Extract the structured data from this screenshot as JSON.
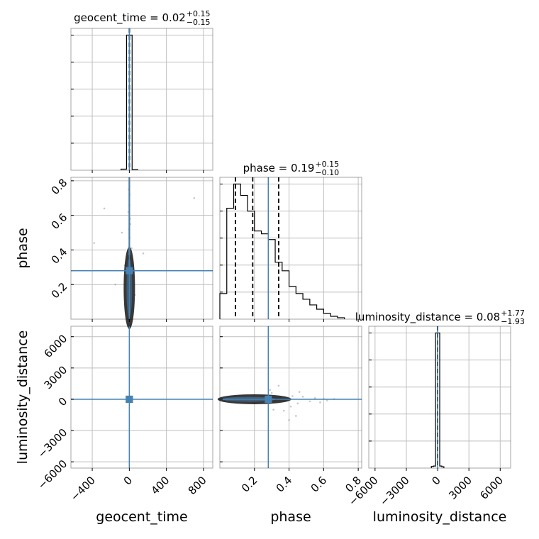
{
  "chart_data": {
    "type": "corner",
    "parameters": [
      "geocent_time",
      "phase",
      "luminosity_distance"
    ],
    "axis_labels": [
      "geocent_time",
      "phase",
      "luminosity_distance"
    ],
    "truth_values": {
      "geocent_time": 0,
      "phase": 0.28,
      "luminosity_distance": 0
    },
    "truth_color": "#4682b4",
    "contour_color": "#000000",
    "grid": true,
    "ranges": {
      "geocent_time": [
        -630,
        900
      ],
      "phase": [
        0,
        0.82
      ],
      "luminosity_distance": [
        -6600,
        7000
      ]
    },
    "ticks": {
      "geocent_time": [
        -400,
        0,
        400,
        800
      ],
      "phase": [
        0.2,
        0.4,
        0.6,
        0.8
      ],
      "luminosity_distance": [
        -6000,
        -3000,
        0,
        3000,
        6000
      ]
    },
    "tick_labels": {
      "geocent_time": [
        "−400",
        "0",
        "400",
        "800"
      ],
      "phase": [
        "0.2",
        "0.4",
        "0.6",
        "0.8"
      ],
      "luminosity_distance": [
        "−6000",
        "−3000",
        "0",
        "3000",
        "6000"
      ]
    },
    "titles": [
      {
        "param": "geocent_time",
        "label": "geocent_time = 0.02",
        "plus": "+0.15",
        "minus": "−0.15"
      },
      {
        "param": "phase",
        "label": "phase = 0.19",
        "plus": "+0.15",
        "minus": "−0.10"
      },
      {
        "param": "luminosity_distance",
        "label": "luminosity_distance = 0.08",
        "plus": "+1.77",
        "minus": "−1.93"
      }
    ],
    "histograms": {
      "geocent_time": {
        "bin_edges": [
          -90,
          -30,
          30,
          90
        ],
        "counts": [
          0.8,
          100,
          0.5
        ],
        "quantiles": [
          -0.13,
          0.02,
          0.17
        ]
      },
      "phase": {
        "bin_edges": [
          0,
          0.04,
          0.08,
          0.12,
          0.16,
          0.2,
          0.24,
          0.28,
          0.32,
          0.36,
          0.4,
          0.44,
          0.48,
          0.52,
          0.56,
          0.6,
          0.64,
          0.68,
          0.72
        ],
        "counts": [
          18,
          78,
          95,
          87,
          76,
          62,
          60,
          56,
          40,
          34,
          23,
          18,
          14,
          10,
          7,
          4,
          2,
          1
        ],
        "quantiles": [
          0.09,
          0.19,
          0.34
        ]
      },
      "luminosity_distance": {
        "bin_edges": [
          -600,
          -400,
          -200,
          200,
          400,
          600
        ],
        "counts": [
          1.2,
          1.5,
          100,
          1.5,
          1.0
        ],
        "quantiles": [
          -1.85,
          0.08,
          1.85
        ]
      }
    },
    "samples_2d": {
      "phase_vs_geocent_time": [
        [
          -2,
          0.05
        ],
        [
          3,
          0.09
        ],
        [
          -5,
          0.12
        ],
        [
          4,
          0.15
        ],
        [
          1,
          0.18
        ],
        [
          -3,
          0.22
        ],
        [
          6,
          0.26
        ],
        [
          2,
          0.3
        ],
        [
          -4,
          0.34
        ],
        [
          5,
          0.38
        ],
        [
          0,
          0.42
        ],
        [
          3,
          0.47
        ],
        [
          -2,
          0.52
        ],
        [
          8,
          0.58
        ],
        [
          -10,
          0.62
        ],
        [
          12,
          0.35
        ],
        [
          -15,
          0.2
        ],
        [
          20,
          0.12
        ],
        [
          -35,
          0.07
        ],
        [
          30,
          0.06
        ],
        [
          25,
          0.41
        ],
        [
          -22,
          0.28
        ],
        [
          0,
          0.66
        ],
        [
          4,
          0.72
        ],
        [
          -6,
          0.75
        ],
        [
          10,
          0.55
        ],
        [
          -150,
          0.2
        ],
        [
          -270,
          0.64
        ],
        [
          -380,
          0.44
        ],
        [
          700,
          0.7
        ],
        [
          150,
          0.38
        ],
        [
          -80,
          0.5
        ],
        [
          60,
          0.14
        ],
        [
          -50,
          0.31
        ]
      ],
      "luminosity_distance_vs_geocent_time": [
        [
          -3,
          -80
        ],
        [
          4,
          60
        ],
        [
          8,
          -40
        ],
        [
          -6,
          120
        ],
        [
          2,
          -150
        ],
        [
          10,
          30
        ],
        [
          -9,
          -20
        ],
        [
          15,
          90
        ],
        [
          -12,
          -110
        ],
        [
          6,
          200
        ],
        [
          20,
          -60
        ],
        [
          -18,
          40
        ],
        [
          25,
          10
        ],
        [
          -25,
          -30
        ],
        [
          12,
          -200
        ],
        [
          30,
          70
        ]
      ],
      "luminosity_distance_vs_phase": [
        [
          0.06,
          -40
        ],
        [
          0.08,
          120
        ],
        [
          0.12,
          -90
        ],
        [
          0.16,
          30
        ],
        [
          0.2,
          -150
        ],
        [
          0.24,
          60
        ],
        [
          0.27,
          -30
        ],
        [
          0.3,
          150
        ],
        [
          0.32,
          -250
        ],
        [
          0.35,
          200
        ],
        [
          0.38,
          -80
        ],
        [
          0.42,
          300
        ],
        [
          0.45,
          -400
        ],
        [
          0.48,
          250
        ],
        [
          0.52,
          -200
        ],
        [
          0.55,
          100
        ],
        [
          0.58,
          -300
        ],
        [
          0.6,
          50
        ],
        [
          0.62,
          -120
        ],
        [
          0.66,
          20
        ],
        [
          0.29,
          900
        ],
        [
          0.31,
          -1000
        ],
        [
          0.37,
          -1100
        ],
        [
          0.4,
          -2000
        ],
        [
          0.44,
          -1600
        ],
        [
          0.34,
          1300
        ],
        [
          0.3,
          600
        ],
        [
          0.41,
          -700
        ],
        [
          0.46,
          700
        ]
      ]
    }
  }
}
